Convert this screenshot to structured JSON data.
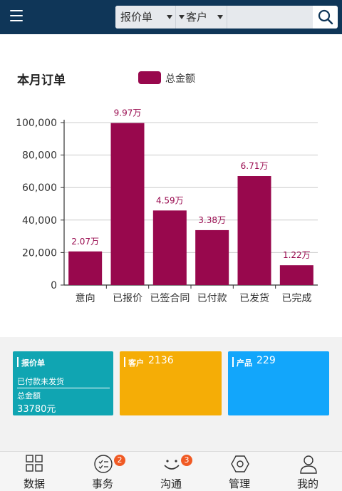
{
  "header": {
    "type_select": "报价单",
    "field_select": "客户",
    "search_placeholder": ""
  },
  "chart_title": "本月订单",
  "chart_data": {
    "type": "bar",
    "title": "本月订单",
    "categories": [
      "意向",
      "已报价",
      "已签合同",
      "已付款",
      "已发货",
      "已完成"
    ],
    "series": [
      {
        "name": "总金额",
        "values": [
          20700,
          99700,
          45900,
          33800,
          67100,
          12200
        ],
        "labels": [
          "2.07万",
          "9.97万",
          "4.59万",
          "3.38万",
          "6.71万",
          "1.22万"
        ]
      }
    ],
    "ylim": [
      0,
      100000
    ],
    "yticks": [
      "0",
      "20,000",
      "40,000",
      "60,000",
      "80,000",
      "100,000"
    ],
    "ytick_values": [
      0,
      20000,
      40000,
      60000,
      80000,
      100000
    ],
    "grid": true,
    "legend": "top-center",
    "bar_color": "#98084d"
  },
  "cards": {
    "quote": {
      "title": "报价单",
      "line1": "已付款未发货",
      "line2": "总金额",
      "amount": "33780元",
      "color": "#10a5b2"
    },
    "customer": {
      "title": "客户",
      "count": "2136",
      "color": "#f5ad06"
    },
    "product": {
      "title": "产品",
      "count": "229",
      "color": "#12a6fb"
    }
  },
  "nav": {
    "items": [
      {
        "label": "数据",
        "icon": "grid-icon"
      },
      {
        "label": "事务",
        "icon": "task-icon",
        "badge": "2"
      },
      {
        "label": "沟通",
        "icon": "smile-icon",
        "badge": "3"
      },
      {
        "label": "管理",
        "icon": "hexagon-icon"
      },
      {
        "label": "我的",
        "icon": "user-icon"
      }
    ]
  }
}
